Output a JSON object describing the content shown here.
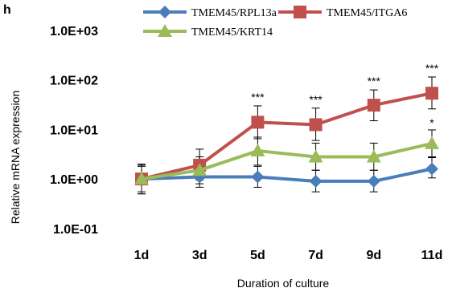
{
  "panel_label": "h",
  "chart_data": {
    "type": "line",
    "title": "",
    "xlabel": "Duration of culture",
    "ylabel": "Relative  mRNA expression",
    "y_scale": "log",
    "ylim": [
      0.1,
      1000
    ],
    "y_tick_labels": [
      "1.0E-01",
      "1.0E+00",
      "1.0E+01",
      "1.0E+02",
      "1.0E+03"
    ],
    "categories": [
      "1d",
      "3d",
      "5d",
      "7d",
      "9d",
      "11d"
    ],
    "grid": false,
    "legend_position": "top",
    "series": [
      {
        "name": "TMEM45/RPL13a",
        "color": "#4a7ebb",
        "marker": "diamond",
        "values": [
          1.0,
          1.1,
          1.1,
          0.9,
          0.9,
          1.6
        ],
        "err_high": [
          1.9,
          1.7,
          1.8,
          1.5,
          1.5,
          2.8
        ],
        "err_low": [
          0.55,
          0.68,
          0.68,
          0.55,
          0.55,
          1.05
        ]
      },
      {
        "name": "TMEM45/ITGA6",
        "color": "#c0504d",
        "marker": "square",
        "values": [
          1.0,
          1.9,
          14.0,
          12.5,
          31.0,
          54.0
        ],
        "err_high": [
          2.0,
          4.0,
          30.0,
          27.0,
          63.0,
          115.0
        ],
        "err_low": [
          0.5,
          0.95,
          6.5,
          6.0,
          15.0,
          26.0
        ]
      },
      {
        "name": "TMEM45/KRT14",
        "color": "#9bbb59",
        "marker": "triangle",
        "values": [
          1.0,
          1.5,
          3.7,
          2.8,
          2.8,
          5.2
        ],
        "err_high": [
          1.8,
          2.8,
          7.0,
          5.3,
          5.3,
          9.8
        ],
        "err_low": [
          0.5,
          0.8,
          1.9,
          1.5,
          1.5,
          2.7
        ]
      }
    ],
    "annotations": [
      {
        "category": "5d",
        "text": "***"
      },
      {
        "category": "7d",
        "text": "***"
      },
      {
        "category": "9d",
        "text": "***"
      },
      {
        "category": "11d",
        "text": "***"
      },
      {
        "category": "11d",
        "text": "*"
      }
    ]
  }
}
